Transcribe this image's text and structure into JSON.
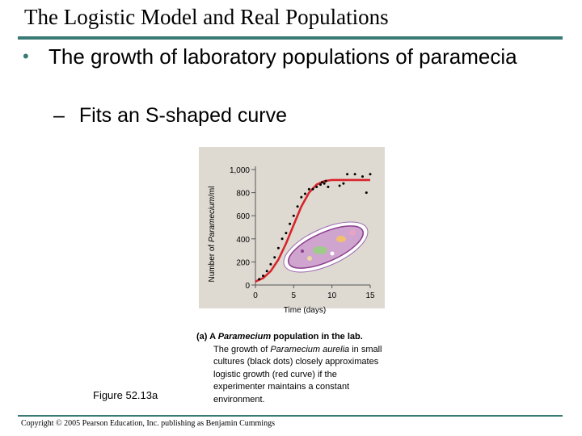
{
  "slide": {
    "title": "The Logistic Model and Real Populations",
    "bullet1": "The growth of laboratory populations of paramecia",
    "bullet1_marker": "•",
    "bullet2": "Fits an S-shaped curve",
    "bullet2_marker": "–",
    "accent_color": "#3a7a74"
  },
  "chart_data": {
    "type": "scatter",
    "xlabel": "Time (days)",
    "ylabel_prefix": "Number of ",
    "ylabel_italic": "Paramecium",
    "ylabel_suffix": "/ml",
    "xlim": [
      0,
      15
    ],
    "ylim": [
      0,
      1000
    ],
    "x_ticks": [
      0,
      5,
      10,
      15
    ],
    "x_tick_labels": [
      "0",
      "5",
      "10",
      "15"
    ],
    "y_ticks": [
      0,
      200,
      400,
      600,
      800,
      1000
    ],
    "y_tick_labels": [
      "0",
      "200",
      "400",
      "600",
      "800",
      "1,000"
    ],
    "panel_color": "#dedad2",
    "curve_color": "#d8242b",
    "dot_color": "#000000",
    "observed": {
      "x": [
        0.5,
        1.0,
        1.5,
        2.0,
        2.5,
        3.0,
        3.5,
        4.0,
        4.5,
        5.0,
        5.5,
        6.0,
        6.5,
        7.0,
        7.5,
        8.0,
        8.5,
        8.7,
        9.0,
        9.2,
        9.5,
        11.0,
        11.5,
        12.0,
        13.0,
        14.0,
        15.0,
        14.5
      ],
      "y": [
        50,
        80,
        120,
        180,
        240,
        320,
        400,
        450,
        530,
        600,
        680,
        760,
        790,
        830,
        830,
        850,
        870,
        890,
        880,
        900,
        850,
        860,
        880,
        960,
        960,
        940,
        960,
        800
      ]
    },
    "model_curve": {
      "x": [
        0,
        1,
        2,
        3,
        4,
        5,
        6,
        7,
        8,
        9,
        10,
        11,
        12,
        13,
        14,
        15
      ],
      "y": [
        30,
        60,
        120,
        220,
        360,
        520,
        680,
        800,
        870,
        900,
        910,
        910,
        910,
        910,
        910,
        910
      ]
    }
  },
  "caption": {
    "lead": "(a) A ",
    "lead_italic": "Paramecium",
    "lead_rest": " population in the lab.",
    "body_1": "The growth of ",
    "body_italic": "Paramecium aurelia",
    "body_2": " in small cultures (black dots) closely approximates logistic growth (red curve) if the experimenter maintains a constant environment."
  },
  "figure_label": "Figure 52.13a",
  "copyright": "Copyright © 2005 Pearson Education, Inc. publishing as Benjamin Cummings"
}
